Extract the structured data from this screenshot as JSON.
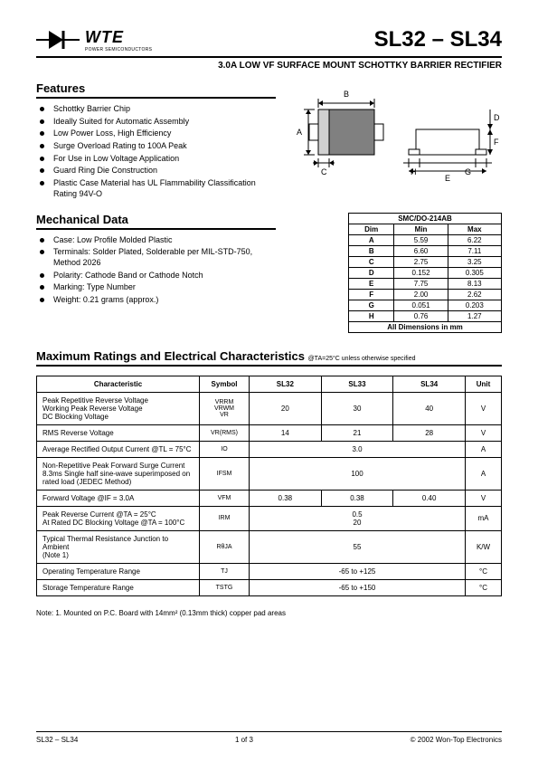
{
  "header": {
    "logo_main": "WTE",
    "logo_sub": "POWER SEMICONDUCTORS",
    "title": "SL32 – SL34",
    "subtitle": "3.0A LOW VF SURFACE MOUNT SCHOTTKY BARRIER RECTIFIER"
  },
  "features": {
    "heading": "Features",
    "items": [
      "Schottky Barrier Chip",
      "Ideally Suited for Automatic Assembly",
      "Low Power Loss, High Efficiency",
      "Surge Overload Rating to 100A Peak",
      "For Use in Low Voltage Application",
      "Guard Ring Die Construction",
      "Plastic Case Material has UL Flammability Classification Rating 94V-O"
    ]
  },
  "mechanical": {
    "heading": "Mechanical Data",
    "items": [
      "Case: Low Profile Molded Plastic",
      "Terminals: Solder Plated, Solderable per MIL-STD-750, Method 2026",
      "Polarity: Cathode Band or Cathode Notch",
      "Marking: Type Number",
      "Weight: 0.21 grams (approx.)"
    ]
  },
  "dim_table": {
    "title": "SMC/DO-214AB",
    "header": [
      "Dim",
      "Min",
      "Max"
    ],
    "rows": [
      [
        "A",
        "5.59",
        "6.22"
      ],
      [
        "B",
        "6.60",
        "7.11"
      ],
      [
        "C",
        "2.75",
        "3.25"
      ],
      [
        "D",
        "0.152",
        "0.305"
      ],
      [
        "E",
        "7.75",
        "8.13"
      ],
      [
        "F",
        "2.00",
        "2.62"
      ],
      [
        "G",
        "0.051",
        "0.203"
      ],
      [
        "H",
        "0.76",
        "1.27"
      ]
    ],
    "footer": "All Dimensions in mm"
  },
  "pkg_labels": {
    "A": "A",
    "B": "B",
    "C": "C",
    "D": "D",
    "E": "E",
    "F": "F",
    "G": "G",
    "H": "H"
  },
  "ratings": {
    "heading": "Maximum Ratings and Electrical Characteristics",
    "condition": "@TA=25°C unless otherwise specified",
    "header": [
      "Characteristic",
      "Symbol",
      "SL32",
      "SL33",
      "SL34",
      "Unit"
    ],
    "rows": [
      {
        "char": "Peak Repetitive Reverse Voltage\nWorking Peak Reverse Voltage\nDC Blocking Voltage",
        "sym": "VRRM\nVRWM\nVR",
        "v": [
          "20",
          "30",
          "40"
        ],
        "unit": "V"
      },
      {
        "char": "RMS Reverse Voltage",
        "sym": "VR(RMS)",
        "v": [
          "14",
          "21",
          "28"
        ],
        "unit": "V"
      },
      {
        "char": "Average Rectified Output Current          @TL = 75°C",
        "sym": "IO",
        "span": "3.0",
        "unit": "A"
      },
      {
        "char": "Non-Repetitive Peak Forward Surge Current\n8.3ms Single half sine-wave superimposed on\nrated load (JEDEC Method)",
        "sym": "IFSM",
        "span": "100",
        "unit": "A"
      },
      {
        "char": "Forward Voltage                              @IF = 3.0A",
        "sym": "VFM",
        "v": [
          "0.38",
          "0.38",
          "0.40"
        ],
        "unit": "V"
      },
      {
        "char": "Peak Reverse Current              @TA = 25°C\nAt Rated DC Blocking Voltage      @TA = 100°C",
        "sym": "IRM",
        "span": "0.5\n20",
        "unit": "mA"
      },
      {
        "char": "Typical Thermal Resistance Junction to Ambient\n(Note 1)",
        "sym": "RθJA",
        "span": "55",
        "unit": "K/W"
      },
      {
        "char": "Operating Temperature Range",
        "sym": "TJ",
        "span": "-65 to +125",
        "unit": "°C"
      },
      {
        "char": "Storage Temperature Range",
        "sym": "TSTG",
        "span": "-65 to +150",
        "unit": "°C"
      }
    ]
  },
  "note": "Note:  1. Mounted on P.C. Board with 14mm² (0.13mm thick) copper pad areas",
  "footer": {
    "left": "SL32 – SL34",
    "center": "1 of 3",
    "right": "© 2002 Won-Top Electronics"
  },
  "style": {
    "page_bg": "#ffffff",
    "text_color": "#000000",
    "rule_color": "#000000",
    "title_fontsize": 24,
    "section_fontsize": 13,
    "body_fontsize": 9,
    "table_fontsize": 8
  }
}
